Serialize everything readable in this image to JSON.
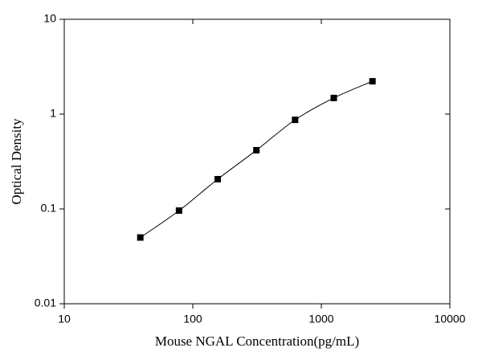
{
  "chart_data": {
    "type": "scatter",
    "x_label": "Mouse NGAL Concentration(pg/mL)",
    "y_label": "Optical Density",
    "x": [
      39.0625,
      78.125,
      156.25,
      312.5,
      625,
      1250,
      2500
    ],
    "values": [
      0.05,
      0.096,
      0.206,
      0.416,
      0.87,
      1.48,
      2.22
    ],
    "color": "#000000",
    "xlim": [
      10,
      10000
    ],
    "xticks": [
      10,
      100,
      1000,
      10000
    ],
    "ylim": [
      0.01,
      10
    ],
    "yticks": [
      0.01,
      0.1,
      1,
      10
    ],
    "xscale": "log",
    "yscale": "log",
    "fit_curve": true
  }
}
